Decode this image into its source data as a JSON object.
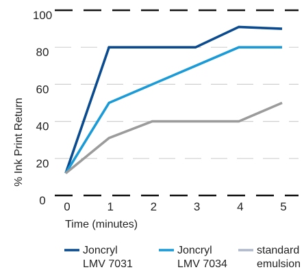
{
  "chart_data": {
    "type": "line",
    "title": "",
    "xlabel": "Time (minutes)",
    "ylabel": "% Ink Print Return",
    "x": [
      0,
      1,
      2,
      3,
      4,
      5
    ],
    "xlim": [
      0,
      5
    ],
    "ylim": [
      0,
      100
    ],
    "yticks": [
      0,
      20,
      40,
      60,
      80,
      100
    ],
    "xticks": [
      0,
      1,
      2,
      3,
      4,
      5
    ],
    "grid": true,
    "legend_position": "bottom",
    "series": [
      {
        "name_line1": "Joncryl",
        "name_line2": "LMV 7031",
        "color": "#0a4a8f",
        "values": [
          12,
          80,
          80,
          80,
          91,
          90
        ]
      },
      {
        "name_line1": "Joncryl",
        "name_line2": "LMV 7034",
        "color": "#1a9ad6",
        "values": [
          12,
          50,
          60,
          70,
          80,
          80
        ]
      },
      {
        "name_line1": "standard",
        "name_line2": "emulsion",
        "color": "#9b9b9b",
        "legend_color": "#b0b8cc",
        "values": [
          12,
          31,
          40,
          40,
          40,
          50
        ]
      }
    ]
  }
}
